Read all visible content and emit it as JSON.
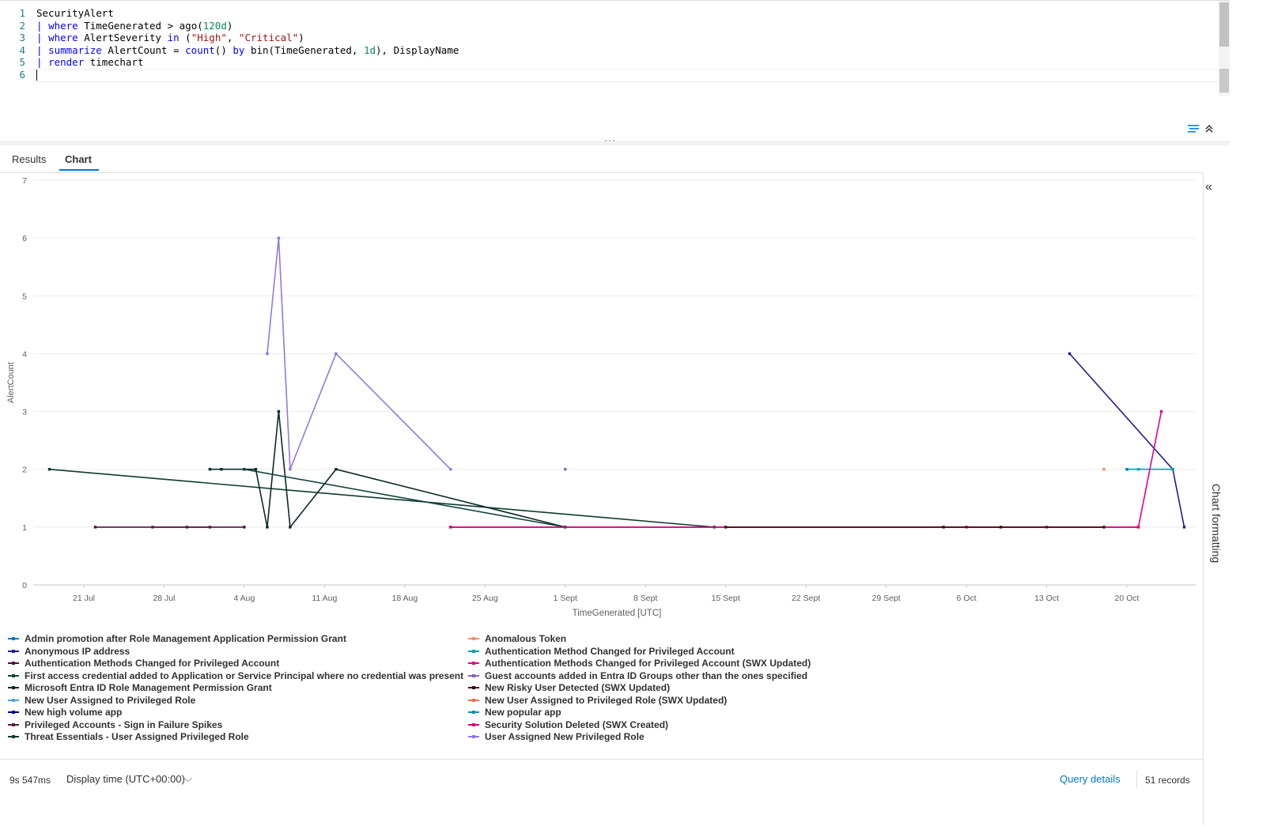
{
  "editor": {
    "lines": [
      {
        "n": "1",
        "parts": [
          {
            "t": "SecurityAlert",
            "c": ""
          }
        ]
      },
      {
        "n": "2",
        "parts": [
          {
            "t": "| ",
            "c": "pipe"
          },
          {
            "t": "where",
            "c": "kw"
          },
          {
            "t": " TimeGenerated > ago(",
            "c": ""
          },
          {
            "t": "120d",
            "c": "num"
          },
          {
            "t": ")",
            "c": ""
          }
        ]
      },
      {
        "n": "3",
        "parts": [
          {
            "t": "| ",
            "c": "pipe"
          },
          {
            "t": "where",
            "c": "kw"
          },
          {
            "t": " AlertSeverity ",
            "c": ""
          },
          {
            "t": "in",
            "c": "kw"
          },
          {
            "t": " (",
            "c": ""
          },
          {
            "t": "\"High\"",
            "c": "str"
          },
          {
            "t": ", ",
            "c": ""
          },
          {
            "t": "\"Critical\"",
            "c": "str"
          },
          {
            "t": ")",
            "c": ""
          }
        ]
      },
      {
        "n": "4",
        "parts": [
          {
            "t": "| ",
            "c": "pipe"
          },
          {
            "t": "summarize",
            "c": "kw"
          },
          {
            "t": " AlertCount = ",
            "c": ""
          },
          {
            "t": "count",
            "c": "kw"
          },
          {
            "t": "() ",
            "c": ""
          },
          {
            "t": "by",
            "c": "kw"
          },
          {
            "t": " bin(TimeGenerated, ",
            "c": ""
          },
          {
            "t": "1d",
            "c": "num"
          },
          {
            "t": "), DisplayName",
            "c": ""
          }
        ]
      },
      {
        "n": "5",
        "parts": [
          {
            "t": "| ",
            "c": "pipe"
          },
          {
            "t": "render",
            "c": "kw"
          },
          {
            "t": " timechart",
            "c": ""
          }
        ]
      },
      {
        "n": "6",
        "parts": []
      }
    ]
  },
  "tabs": {
    "results": "Results",
    "chart": "Chart"
  },
  "right_pane": {
    "label": "Chart formatting"
  },
  "status": {
    "duration": "9s 547ms",
    "display_time": "Display time (UTC+00:00)",
    "query_details": "Query details",
    "records": "51 records"
  },
  "chart_data": {
    "type": "line",
    "xlabel": "TimeGenerated [UTC]",
    "ylabel": "AlertCount",
    "ylim": [
      0,
      7
    ],
    "yticks": [
      "0",
      "1",
      "2",
      "3",
      "4",
      "5",
      "6",
      "7"
    ],
    "xlim": [
      "2024-07-17",
      "2024-10-25"
    ],
    "xticks": [
      {
        "date": "2024-07-21",
        "label": "21 Jul"
      },
      {
        "date": "2024-07-28",
        "label": "28 Jul"
      },
      {
        "date": "2024-08-04",
        "label": "4 Aug"
      },
      {
        "date": "2024-08-11",
        "label": "11 Aug"
      },
      {
        "date": "2024-08-18",
        "label": "18 Aug"
      },
      {
        "date": "2024-08-25",
        "label": "25 Aug"
      },
      {
        "date": "2024-09-01",
        "label": "1 Sept"
      },
      {
        "date": "2024-09-08",
        "label": "8 Sept"
      },
      {
        "date": "2024-09-15",
        "label": "15 Sept"
      },
      {
        "date": "2024-09-22",
        "label": "22 Sept"
      },
      {
        "date": "2024-09-29",
        "label": "29 Sept"
      },
      {
        "date": "2024-10-06",
        "label": "6 Oct"
      },
      {
        "date": "2024-10-13",
        "label": "13 Oct"
      },
      {
        "date": "2024-10-20",
        "label": "20 Oct"
      }
    ],
    "grid": true,
    "legend_position": "bottom",
    "series": [
      {
        "name": "Admin promotion after Role Management Application Permission Grant",
        "color": "#0078d4",
        "points": []
      },
      {
        "name": "Anomalous Token",
        "color": "#ff8c6a",
        "points": [
          [
            "2024-10-18",
            2
          ]
        ]
      },
      {
        "name": "Anonymous IP address",
        "color": "#1e1e8c",
        "points": [
          [
            "2024-10-15",
            4
          ],
          [
            "2024-10-24",
            2
          ],
          [
            "2024-10-25",
            1
          ]
        ]
      },
      {
        "name": "Authentication Method Changed for Privileged Account",
        "color": "#00a2ad",
        "points": [
          [
            "2024-10-20",
            2
          ],
          [
            "2024-10-21",
            2
          ],
          [
            "2024-10-24",
            2
          ]
        ]
      },
      {
        "name": "Authentication Methods Changed for Privileged Account",
        "color": "#4a1538",
        "points": [
          [
            "2024-07-22",
            1
          ],
          [
            "2024-08-04",
            1
          ]
        ]
      },
      {
        "name": "Authentication Methods Changed for Privileged Account (SWX Updated)",
        "color": "#e3008c",
        "points": [
          [
            "2024-08-22",
            1
          ],
          [
            "2024-10-21",
            1
          ],
          [
            "2024-10-23",
            3
          ]
        ]
      },
      {
        "name": "First access credential added to Application or Service Principal where no credential was present",
        "color": "#13453f",
        "points": []
      },
      {
        "name": "Guest accounts added in Entra ID Groups other than the ones specified",
        "color": "#8764b8",
        "points": [
          [
            "2024-09-01",
            2
          ]
        ]
      },
      {
        "name": "Microsoft Entra ID Role Management Permission Grant",
        "color": "#0b2a29",
        "points": []
      },
      {
        "name": "New Risky User Detected (SWX Updated)",
        "color": "#3b0a0a",
        "points": []
      },
      {
        "name": "New User Assigned to Privileged Role",
        "color": "#4aa3df",
        "points": []
      },
      {
        "name": "New User Assigned to Privileged Role (SWX Updated)",
        "color": "#f06b4a",
        "points": []
      },
      {
        "name": "New high volume app",
        "color": "#000080",
        "points": []
      },
      {
        "name": "New popular app",
        "color": "#1490ad",
        "points": []
      },
      {
        "name": "Privileged Accounts - Sign in Failure Spikes",
        "color": "#5c1a3d",
        "points": []
      },
      {
        "name": "Security Solution Deleted (SWX Created)",
        "color": "#d6007a",
        "points": []
      },
      {
        "name": "Threat Essentials - User Assigned Privileged Role",
        "color": "#0f3b2e",
        "points": [
          [
            "2024-07-18",
            2
          ],
          [
            "2024-09-14",
            1
          ]
        ]
      },
      {
        "name": "User Assigned New Privileged Role",
        "color": "#9478e0",
        "points": [
          [
            "2024-08-06",
            4
          ],
          [
            "2024-08-07",
            6
          ],
          [
            "2024-08-08",
            2
          ],
          [
            "2024-08-12",
            4
          ],
          [
            "2024-08-22",
            2
          ]
        ]
      },
      {
        "name": "",
        "color": "#0b2a29",
        "points": [
          [
            "2024-08-01",
            2
          ],
          [
            "2024-08-02",
            2
          ],
          [
            "2024-08-04",
            2
          ],
          [
            "2024-08-05",
            2
          ],
          [
            "2024-08-06",
            1
          ],
          [
            "2024-08-07",
            3
          ],
          [
            "2024-08-08",
            1
          ],
          [
            "2024-08-12",
            2
          ],
          [
            "2024-09-01",
            1
          ]
        ]
      },
      {
        "name": "",
        "color": "#13453f",
        "points": [
          [
            "2024-08-04",
            2
          ],
          [
            "2024-09-01",
            1
          ]
        ]
      },
      {
        "name": "",
        "color": "#5c1a3d",
        "points": [
          [
            "2024-07-27",
            1
          ],
          [
            "2024-07-30",
            1
          ],
          [
            "2024-08-01",
            1
          ]
        ]
      },
      {
        "name": "",
        "color": "#d6007a",
        "points": [
          [
            "2024-08-22",
            1
          ],
          [
            "2024-10-06",
            1
          ],
          [
            "2024-10-13",
            1
          ],
          [
            "2024-10-21",
            1
          ]
        ]
      },
      {
        "name": "",
        "color": "#3b0a0a",
        "points": [
          [
            "2024-09-15",
            1
          ],
          [
            "2024-10-04",
            1
          ],
          [
            "2024-10-09",
            1
          ],
          [
            "2024-10-18",
            1
          ]
        ]
      },
      {
        "name": "",
        "color": "#0078d4",
        "points": [
          [
            "2024-10-20",
            2
          ]
        ]
      }
    ],
    "legend_left": [
      0,
      2,
      4,
      6,
      8,
      10,
      12,
      14,
      16
    ],
    "legend_right": [
      1,
      3,
      5,
      7,
      9,
      11,
      13,
      15,
      17
    ]
  }
}
